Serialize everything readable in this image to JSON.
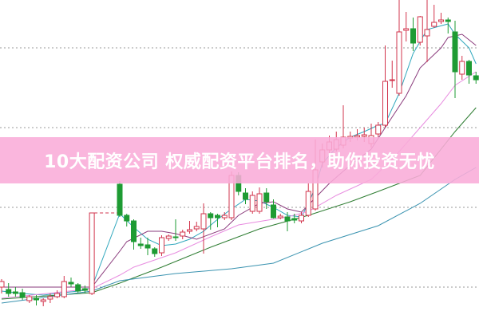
{
  "banner": {
    "text": "10大配资公司 权威配资平台排名，助你投资无忧"
  },
  "colors": {
    "up": "#d2344c",
    "down": "#1e9b33",
    "grid": "#9a9a9a",
    "banner": "#f9acd8"
  },
  "chart_data": {
    "type": "candlestick",
    "title": "",
    "xlabel": "",
    "ylabel": "",
    "ylim": [
      0,
      40
    ],
    "grid": true,
    "grid_levels": [
      4,
      14,
      24,
      34
    ],
    "candle_format": [
      "open",
      "high",
      "low",
      "close"
    ],
    "candles": [
      [
        4.0,
        5.0,
        3.2,
        4.7
      ],
      [
        3.7,
        4.5,
        2.8,
        3.2
      ],
      [
        3.4,
        4.0,
        2.8,
        3.2
      ],
      [
        3.3,
        3.8,
        2.4,
        2.7
      ],
      [
        2.3,
        3.0,
        2.0,
        2.8
      ],
      [
        2.6,
        3.0,
        1.7,
        2.4
      ],
      [
        2.2,
        2.6,
        1.6,
        2.4
      ],
      [
        2.5,
        3.2,
        2.0,
        2.8
      ],
      [
        2.8,
        3.6,
        2.6,
        3.2
      ],
      [
        2.8,
        5.4,
        2.6,
        4.7
      ],
      [
        4.6,
        5.2,
        4.0,
        4.4
      ],
      [
        4.3,
        4.5,
        3.3,
        3.5
      ],
      [
        3.8,
        4.2,
        3.2,
        3.6
      ],
      [
        3.2,
        13.3,
        3.0,
        13.3
      ],
      [
        16.9,
        17.3,
        12.8,
        13.0
      ],
      [
        13.0,
        13.2,
        11.6,
        12.3
      ],
      [
        12.3,
        12.5,
        8.7,
        9.7
      ],
      [
        9.4,
        10.2,
        8.8,
        9.2
      ],
      [
        9.3,
        10.2,
        8.0,
        8.9
      ],
      [
        8.8,
        9.0,
        7.8,
        8.2
      ],
      [
        8.3,
        10.5,
        7.9,
        10.2
      ],
      [
        10.1,
        10.6,
        9.8,
        10.4
      ],
      [
        10.3,
        12.5,
        9.8,
        10.2
      ],
      [
        10.4,
        11.2,
        10.0,
        10.9
      ],
      [
        11.0,
        12.3,
        10.7,
        11.2
      ],
      [
        11.3,
        12.2,
        11.0,
        11.6
      ],
      [
        11.3,
        14.5,
        8.2,
        13.2
      ],
      [
        13.2,
        13.4,
        11.2,
        12.7
      ],
      [
        13.0,
        13.2,
        11.5,
        12.7
      ],
      [
        12.7,
        13.4,
        12.4,
        13.0
      ],
      [
        12.7,
        18.5,
        12.4,
        18.0
      ],
      [
        18.0,
        18.4,
        15.5,
        16.0
      ],
      [
        15.8,
        16.4,
        14.4,
        15.0
      ],
      [
        13.5,
        16.0,
        13.2,
        15.5
      ],
      [
        13.5,
        16.5,
        13.2,
        15.7
      ],
      [
        15.8,
        16.4,
        13.8,
        14.7
      ],
      [
        14.3,
        15.0,
        12.6,
        12.7
      ],
      [
        12.7,
        13.2,
        12.5,
        12.9
      ],
      [
        12.8,
        13.4,
        11.0,
        12.3
      ],
      [
        12.6,
        13.2,
        12.0,
        12.4
      ],
      [
        12.3,
        13.4,
        12.0,
        13.0
      ],
      [
        13.0,
        17.0,
        12.8,
        16.0
      ],
      [
        13.8,
        22.5,
        13.6,
        18.7
      ],
      [
        19.7,
        22.0,
        19.0,
        21.2
      ],
      [
        21.2,
        23.0,
        20.0,
        22.2
      ],
      [
        21.3,
        23.5,
        21.0,
        22.5
      ],
      [
        21.8,
        26.8,
        21.4,
        22.8
      ],
      [
        22.7,
        23.5,
        22.2,
        22.9
      ],
      [
        22.8,
        23.8,
        22.4,
        23.0
      ],
      [
        22.9,
        24.0,
        22.2,
        23.1
      ],
      [
        22.0,
        24.5,
        21.5,
        23.0
      ],
      [
        23.2,
        24.7,
        22.8,
        24.3
      ],
      [
        24.3,
        34.3,
        24.0,
        29.8
      ],
      [
        29.9,
        32.4,
        29.0,
        30.0
      ],
      [
        28.3,
        40.0,
        28.0,
        36.0
      ],
      [
        36.2,
        38.5,
        34.8,
        36.4
      ],
      [
        36.4,
        37.8,
        33.6,
        34.6
      ],
      [
        34.7,
        38.0,
        34.3,
        37.9
      ],
      [
        35.5,
        40.0,
        32.2,
        36.3
      ],
      [
        36.7,
        39.4,
        36.5,
        37.2
      ],
      [
        37.3,
        38.4,
        37.0,
        37.5
      ],
      [
        37.5,
        37.8,
        35.8,
        37.3
      ],
      [
        36.0,
        37.4,
        27.7,
        31.0
      ],
      [
        30.7,
        33.0,
        30.0,
        32.3
      ],
      [
        32.3,
        32.5,
        29.5,
        30.6
      ],
      [
        30.5,
        31.0,
        29.5,
        30.0
      ]
    ],
    "limit_up_dashed": [
      13,
      14
    ],
    "moving_averages": [
      {
        "color": "#2fa7bd",
        "points": [
          [
            0,
            3.5
          ],
          [
            3,
            3.2
          ],
          [
            6,
            3.0
          ],
          [
            9,
            3.3
          ],
          [
            12,
            3.6
          ],
          [
            13,
            4.0
          ],
          [
            14,
            13.2
          ],
          [
            16,
            11.5
          ],
          [
            18,
            10.0
          ],
          [
            20,
            9.2
          ],
          [
            22,
            9.4
          ],
          [
            24,
            10.0
          ],
          [
            26,
            11.0
          ],
          [
            28,
            12.5
          ],
          [
            30,
            13.8
          ],
          [
            32,
            15.0
          ],
          [
            34,
            14.8
          ],
          [
            36,
            14.0
          ],
          [
            38,
            13.0
          ],
          [
            40,
            12.8
          ],
          [
            41,
            14.5
          ],
          [
            42,
            16.5
          ],
          [
            43,
            19.5
          ],
          [
            45,
            21.5
          ],
          [
            47,
            22.8
          ],
          [
            49,
            23.5
          ],
          [
            51,
            24.3
          ],
          [
            52,
            24.5
          ],
          [
            54,
            28.3
          ],
          [
            56,
            33.3
          ],
          [
            57,
            34.8
          ],
          [
            58,
            36.3
          ],
          [
            61,
            37.0
          ],
          [
            62,
            35.7
          ],
          [
            64,
            34.0
          ],
          [
            65,
            32.0
          ]
        ]
      },
      {
        "color": "#8a3b7c",
        "points": [
          [
            0,
            4.0
          ],
          [
            13,
            4.0
          ],
          [
            14,
            8.5
          ],
          [
            15,
            9.7
          ],
          [
            18,
            11.0
          ],
          [
            20,
            11.0
          ],
          [
            22,
            10.7
          ],
          [
            25,
            10.0
          ],
          [
            29,
            11.3
          ],
          [
            31,
            13.0
          ],
          [
            34,
            14.5
          ],
          [
            36,
            14.7
          ],
          [
            38,
            13.8
          ],
          [
            40,
            13.4
          ],
          [
            41,
            14.3
          ],
          [
            44,
            17.0
          ],
          [
            47,
            19.3
          ],
          [
            50,
            21.3
          ],
          [
            52,
            24.0
          ],
          [
            55,
            28.0
          ],
          [
            57,
            31.5
          ],
          [
            60,
            34.0
          ],
          [
            61,
            35.3
          ],
          [
            63,
            35.7
          ],
          [
            65,
            34.3
          ]
        ]
      },
      {
        "color": "#e88de0",
        "points": [
          [
            0,
            2.6
          ],
          [
            13,
            3.8
          ],
          [
            14,
            5.5
          ],
          [
            16,
            6.5
          ],
          [
            22,
            8.3
          ],
          [
            27,
            10.3
          ],
          [
            31,
            11.8
          ],
          [
            38,
            12.8
          ],
          [
            41,
            13.5
          ],
          [
            45,
            15.5
          ],
          [
            50,
            17.5
          ],
          [
            53,
            20.0
          ],
          [
            57,
            24.0
          ],
          [
            60,
            27.0
          ],
          [
            62,
            29.3
          ],
          [
            65,
            31.0
          ]
        ]
      },
      {
        "color": "#2e7d32",
        "points": [
          [
            0,
            2.5
          ],
          [
            13,
            3.3
          ],
          [
            14,
            4.5
          ],
          [
            20,
            6.5
          ],
          [
            27,
            9.0
          ],
          [
            34,
            11.3
          ],
          [
            41,
            13.0
          ],
          [
            47,
            14.7
          ],
          [
            51,
            16.0
          ],
          [
            57,
            18.0
          ],
          [
            62,
            23.5
          ],
          [
            65,
            26.5
          ]
        ]
      },
      {
        "color": "#3a93b0",
        "points": [
          [
            0,
            2.0
          ],
          [
            13,
            3.5
          ],
          [
            14,
            4.8
          ],
          [
            22,
            5.7
          ],
          [
            30,
            6.3
          ],
          [
            36,
            7.0
          ],
          [
            43,
            9.5
          ],
          [
            51,
            11.7
          ],
          [
            57,
            14.5
          ],
          [
            62,
            17.5
          ],
          [
            65,
            19.0
          ]
        ]
      }
    ]
  }
}
